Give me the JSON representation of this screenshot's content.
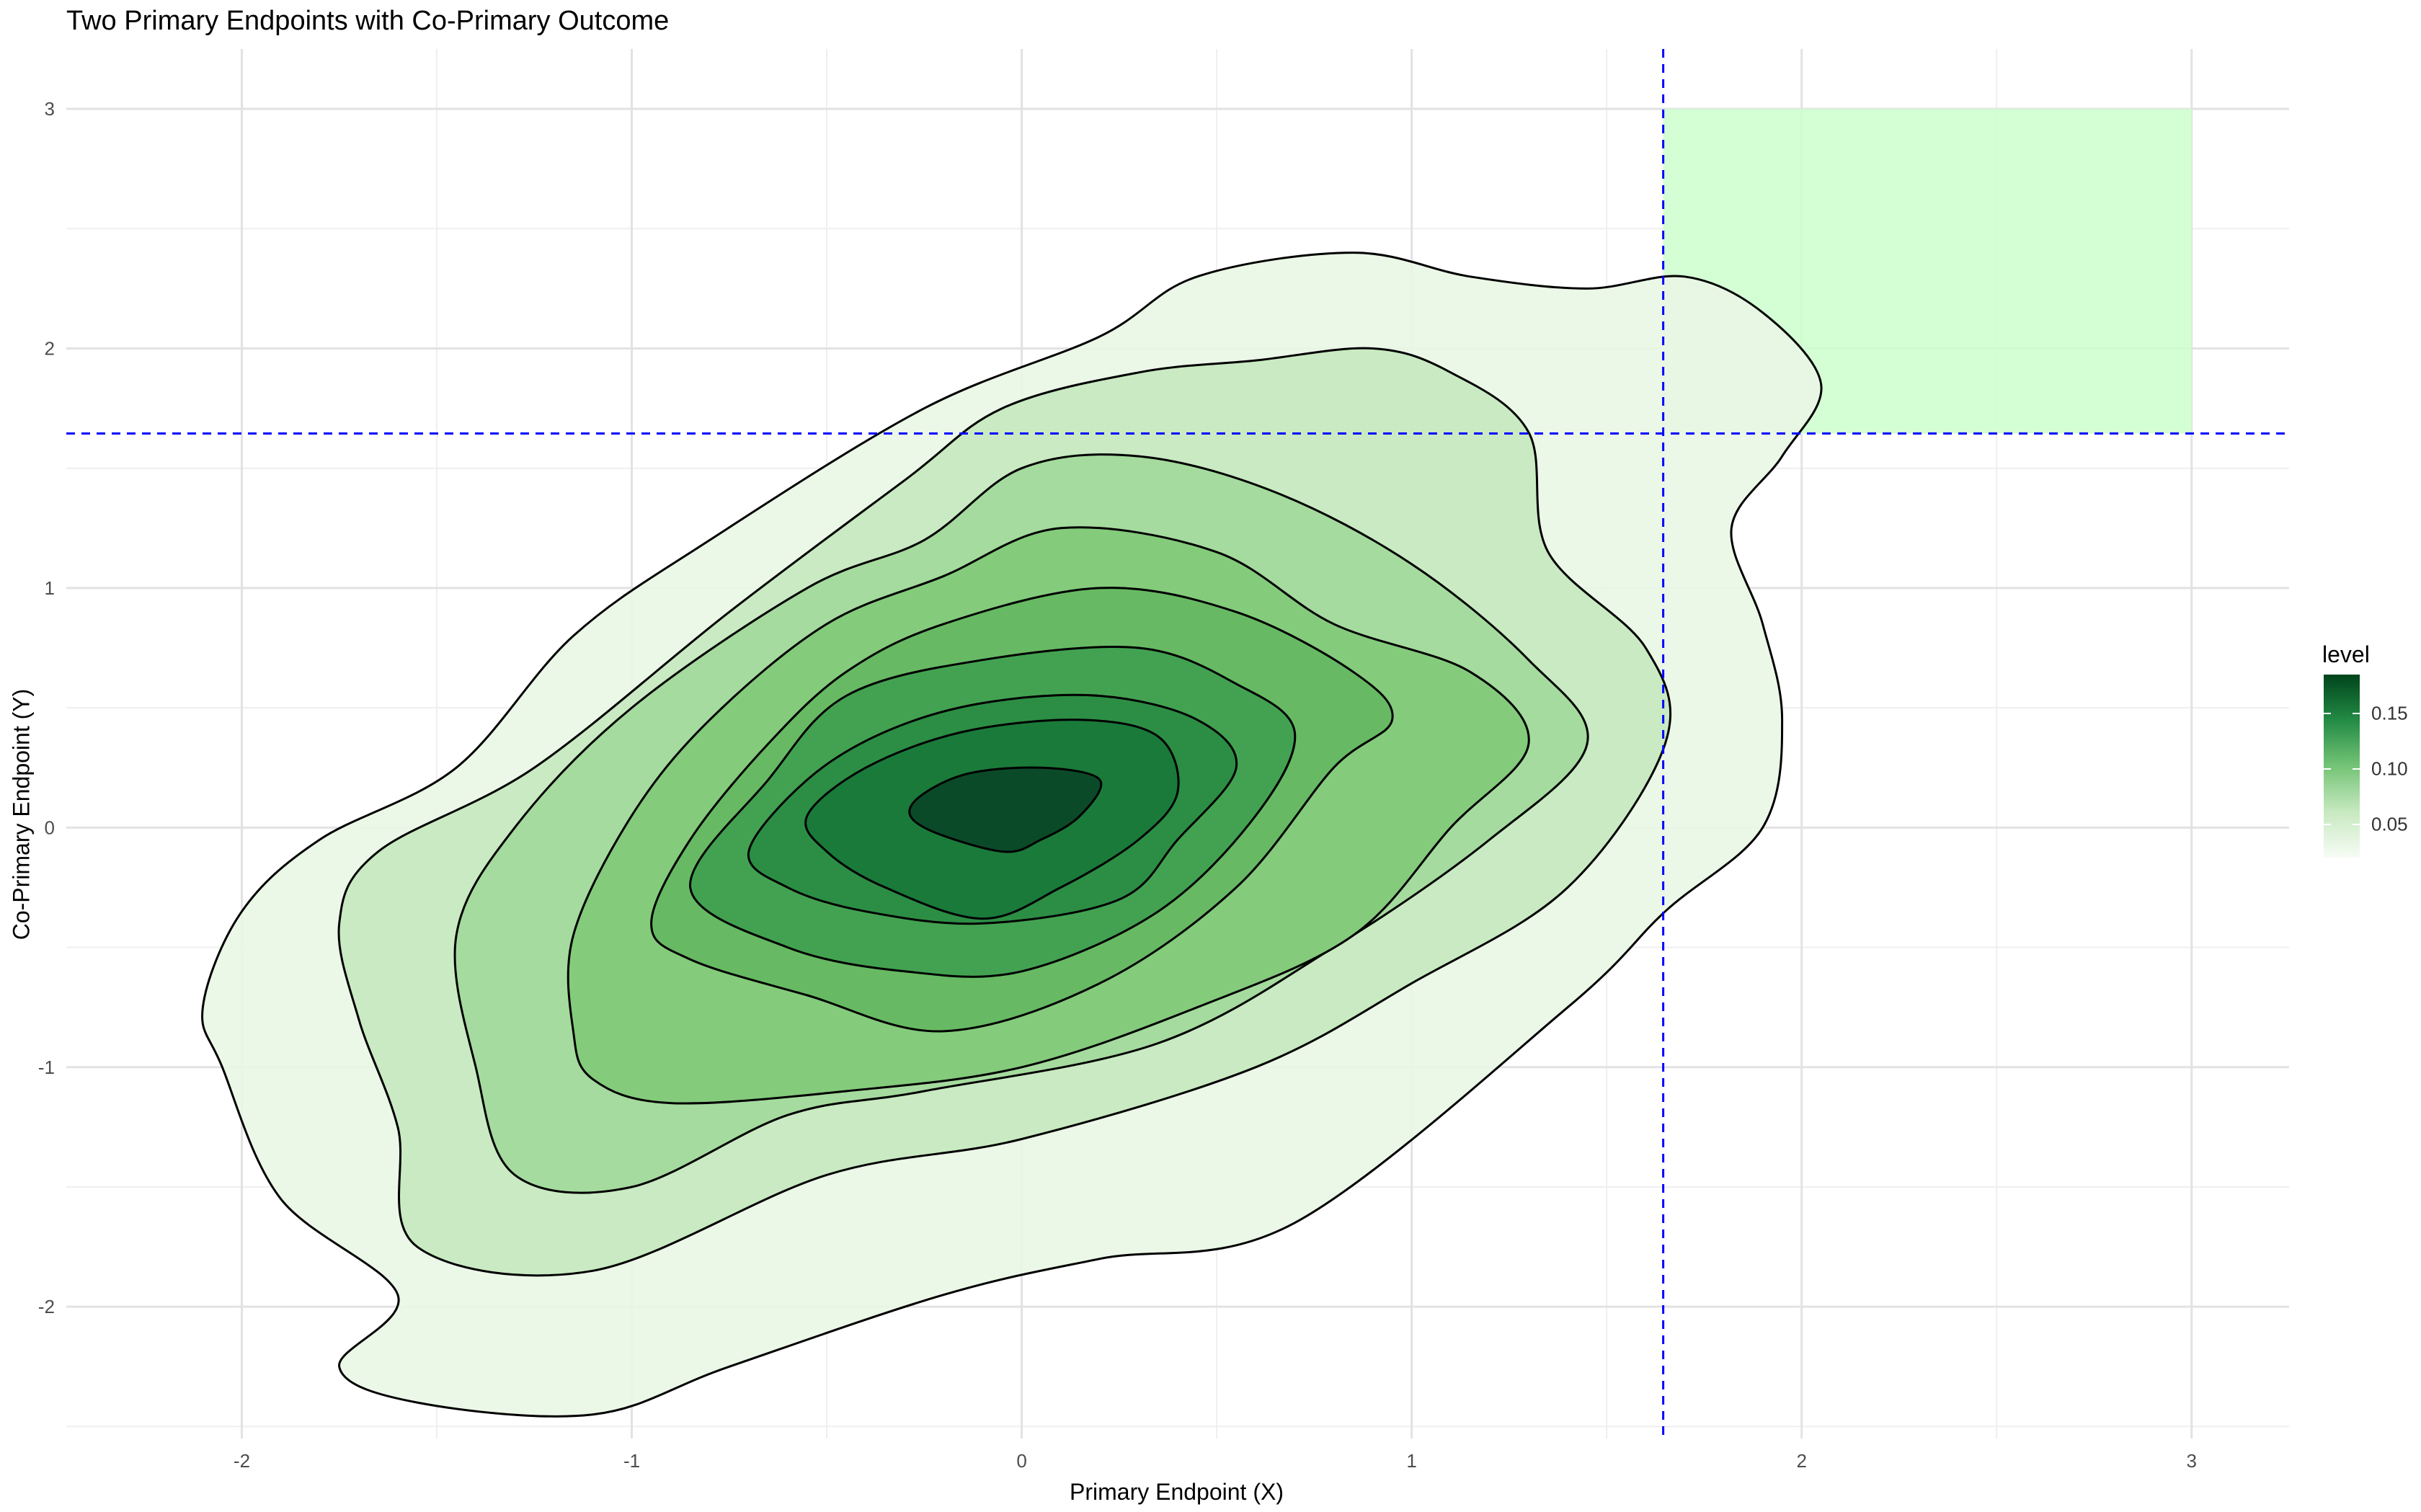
{
  "chart_data": {
    "type": "contour",
    "title": "Two Primary Endpoints with Co-Primary Outcome",
    "xlabel": "Primary Endpoint (X)",
    "ylabel": "Co-Primary Endpoint (Y)",
    "xlim": [
      -2.45,
      3.25
    ],
    "ylim": [
      -2.55,
      3.25
    ],
    "x_ticks": [
      -2,
      -1,
      0,
      1,
      2,
      3
    ],
    "x_tick_labels": [
      "-2",
      "-1",
      "0",
      "1",
      "2",
      "3"
    ],
    "y_ticks": [
      -2,
      -1,
      0,
      1,
      2,
      3
    ],
    "y_tick_labels": [
      "-2",
      "-1",
      "0",
      "1",
      "2",
      "3"
    ],
    "grid": true,
    "legend": {
      "title": "level",
      "position": "right",
      "breaks": [
        0.05,
        0.1,
        0.15
      ],
      "break_labels": [
        "0.05",
        "0.10",
        "0.15"
      ],
      "range": [
        0.02,
        0.185
      ],
      "colors": [
        "#f7fcf5",
        "#c7e9c0",
        "#74c476",
        "#238b45",
        "#00441b"
      ]
    },
    "threshold_lines": {
      "x": 1.645,
      "y": 1.645,
      "color": "#0000ff",
      "style": "dashed"
    },
    "success_region": {
      "x": [
        1.645,
        3.0
      ],
      "y": [
        1.645,
        3.0
      ],
      "color": "#ccffcc"
    },
    "contours": [
      {
        "level": 0.02,
        "fill": "#e9f6e4",
        "points": [
          [
            -2.1,
            -0.75
          ],
          [
            -2.0,
            -0.35
          ],
          [
            -1.8,
            -0.05
          ],
          [
            -1.45,
            0.25
          ],
          [
            -1.15,
            0.8
          ],
          [
            -0.8,
            1.2
          ],
          [
            -0.25,
            1.75
          ],
          [
            0.2,
            2.05
          ],
          [
            0.45,
            2.3
          ],
          [
            0.85,
            2.4
          ],
          [
            1.15,
            2.3
          ],
          [
            1.45,
            2.25
          ],
          [
            1.7,
            2.3
          ],
          [
            1.9,
            2.15
          ],
          [
            2.05,
            1.85
          ],
          [
            1.95,
            1.55
          ],
          [
            1.82,
            1.25
          ],
          [
            1.9,
            0.85
          ],
          [
            1.95,
            0.45
          ],
          [
            1.9,
            0.0
          ],
          [
            1.65,
            -0.35
          ],
          [
            1.4,
            -0.75
          ],
          [
            0.7,
            -1.65
          ],
          [
            0.2,
            -1.8
          ],
          [
            -0.2,
            -1.95
          ],
          [
            -0.75,
            -2.25
          ],
          [
            -1.1,
            -2.45
          ],
          [
            -1.55,
            -2.4
          ],
          [
            -1.75,
            -2.25
          ],
          [
            -1.6,
            -1.95
          ],
          [
            -1.9,
            -1.55
          ],
          [
            -2.05,
            -1.0
          ]
        ]
      },
      {
        "level": 0.04,
        "fill": "#c9eac2",
        "points": [
          [
            -1.75,
            -0.4
          ],
          [
            -1.65,
            -0.1
          ],
          [
            -1.25,
            0.25
          ],
          [
            -0.75,
            0.9
          ],
          [
            -0.3,
            1.45
          ],
          [
            -0.05,
            1.75
          ],
          [
            0.3,
            1.9
          ],
          [
            0.6,
            1.95
          ],
          [
            0.9,
            2.0
          ],
          [
            1.1,
            1.9
          ],
          [
            1.3,
            1.65
          ],
          [
            1.35,
            1.15
          ],
          [
            1.6,
            0.75
          ],
          [
            1.65,
            0.35
          ],
          [
            1.4,
            -0.25
          ],
          [
            1.0,
            -0.65
          ],
          [
            0.6,
            -1.0
          ],
          [
            0.0,
            -1.3
          ],
          [
            -0.5,
            -1.45
          ],
          [
            -1.1,
            -1.85
          ],
          [
            -1.55,
            -1.75
          ],
          [
            -1.6,
            -1.25
          ],
          [
            -1.7,
            -0.8
          ]
        ]
      },
      {
        "level": 0.06,
        "fill": "#a5db9e",
        "points": [
          [
            -1.45,
            -0.45
          ],
          [
            -1.3,
            0.0
          ],
          [
            -1.0,
            0.5
          ],
          [
            -0.55,
            1.0
          ],
          [
            -0.25,
            1.2
          ],
          [
            0.0,
            1.5
          ],
          [
            0.3,
            1.55
          ],
          [
            0.65,
            1.4
          ],
          [
            1.0,
            1.1
          ],
          [
            1.3,
            0.7
          ],
          [
            1.45,
            0.35
          ],
          [
            1.2,
            -0.05
          ],
          [
            0.8,
            -0.5
          ],
          [
            0.35,
            -0.9
          ],
          [
            -0.25,
            -1.1
          ],
          [
            -0.6,
            -1.2
          ],
          [
            -1.0,
            -1.5
          ],
          [
            -1.3,
            -1.45
          ],
          [
            -1.4,
            -1.0
          ]
        ]
      },
      {
        "level": 0.08,
        "fill": "#84cb7c",
        "points": [
          [
            -1.15,
            -0.85
          ],
          [
            -1.15,
            -0.45
          ],
          [
            -1.0,
            0.05
          ],
          [
            -0.8,
            0.45
          ],
          [
            -0.5,
            0.85
          ],
          [
            -0.2,
            1.05
          ],
          [
            0.1,
            1.25
          ],
          [
            0.5,
            1.15
          ],
          [
            0.8,
            0.85
          ],
          [
            1.15,
            0.65
          ],
          [
            1.3,
            0.35
          ],
          [
            1.1,
            0.0
          ],
          [
            0.85,
            -0.45
          ],
          [
            0.45,
            -0.75
          ],
          [
            0.0,
            -1.0
          ],
          [
            -0.45,
            -1.1
          ],
          [
            -0.9,
            -1.15
          ],
          [
            -1.1,
            -1.05
          ]
        ]
      },
      {
        "level": 0.1,
        "fill": "#67ba63",
        "points": [
          [
            -0.95,
            -0.4
          ],
          [
            -0.85,
            -0.05
          ],
          [
            -0.65,
            0.35
          ],
          [
            -0.45,
            0.65
          ],
          [
            -0.2,
            0.85
          ],
          [
            0.2,
            1.0
          ],
          [
            0.55,
            0.9
          ],
          [
            0.85,
            0.65
          ],
          [
            0.95,
            0.45
          ],
          [
            0.8,
            0.25
          ],
          [
            0.55,
            -0.25
          ],
          [
            0.2,
            -0.65
          ],
          [
            -0.2,
            -0.85
          ],
          [
            -0.55,
            -0.7
          ],
          [
            -0.85,
            -0.55
          ]
        ]
      },
      {
        "level": 0.12,
        "fill": "#43a251",
        "points": [
          [
            -0.85,
            -0.25
          ],
          [
            -0.65,
            0.2
          ],
          [
            -0.45,
            0.55
          ],
          [
            -0.1,
            0.7
          ],
          [
            0.3,
            0.75
          ],
          [
            0.55,
            0.6
          ],
          [
            0.7,
            0.4
          ],
          [
            0.6,
            0.05
          ],
          [
            0.35,
            -0.35
          ],
          [
            0.0,
            -0.6
          ],
          [
            -0.3,
            -0.6
          ],
          [
            -0.6,
            -0.5
          ]
        ]
      },
      {
        "level": 0.14,
        "fill": "#2c8e44",
        "points": [
          [
            -0.7,
            -0.1
          ],
          [
            -0.55,
            0.2
          ],
          [
            -0.35,
            0.4
          ],
          [
            -0.1,
            0.52
          ],
          [
            0.2,
            0.55
          ],
          [
            0.45,
            0.45
          ],
          [
            0.55,
            0.25
          ],
          [
            0.4,
            -0.05
          ],
          [
            0.25,
            -0.3
          ],
          [
            -0.1,
            -0.4
          ],
          [
            -0.4,
            -0.35
          ],
          [
            -0.6,
            -0.25
          ]
        ]
      },
      {
        "level": 0.16,
        "fill": "#1a7a3a",
        "points": [
          [
            -0.55,
            0.05
          ],
          [
            -0.4,
            0.25
          ],
          [
            -0.15,
            0.4
          ],
          [
            0.15,
            0.45
          ],
          [
            0.35,
            0.38
          ],
          [
            0.4,
            0.15
          ],
          [
            0.3,
            -0.05
          ],
          [
            0.1,
            -0.25
          ],
          [
            -0.1,
            -0.38
          ],
          [
            -0.35,
            -0.25
          ],
          [
            -0.5,
            -0.1
          ]
        ]
      },
      {
        "level": 0.18,
        "fill": "#0b4a28",
        "points": [
          [
            -0.28,
            0.1
          ],
          [
            -0.15,
            0.22
          ],
          [
            0.05,
            0.25
          ],
          [
            0.2,
            0.2
          ],
          [
            0.15,
            0.05
          ],
          [
            0.05,
            -0.05
          ],
          [
            -0.05,
            -0.1
          ],
          [
            -0.25,
            0.0
          ]
        ]
      }
    ]
  }
}
